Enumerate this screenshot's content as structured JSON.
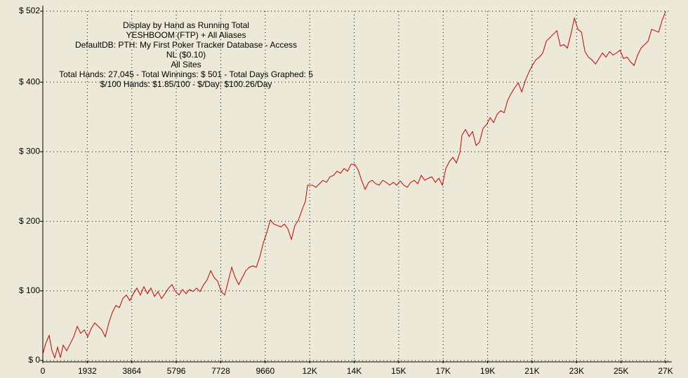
{
  "chart_data": {
    "type": "line",
    "annotations": [
      "Display by Hand as Running Total",
      "YESHBOOM (FTP) + All Aliases",
      "DefaultDB: PTH: My First Poker Tracker Database - Access",
      "NL ($0.10)",
      "All Sites",
      "Total Hands: 27,045 - Total Winnings: $ 501 - Total Days Graphed: 5",
      "$/100 Hands: $1.85/100 - $/Day: $100.26/Day"
    ],
    "x": [
      0,
      122,
      275,
      397,
      519,
      641,
      763,
      885,
      1037,
      1190,
      1342,
      1495,
      1647,
      1800,
      1952,
      2105,
      2257,
      2410,
      2562,
      2715,
      2867,
      3020,
      3172,
      3325,
      3477,
      3630,
      3782,
      3935,
      4087,
      4240,
      4392,
      4545,
      4697,
      4850,
      5002,
      5155,
      5307,
      5460,
      5612,
      5765,
      5917,
      6070,
      6222,
      6375,
      6527,
      6680,
      6832,
      6985,
      7137,
      7290,
      7442,
      7595,
      7747,
      7900,
      8052,
      8205,
      8357,
      8510,
      8662,
      8815,
      8967,
      9120,
      9272,
      9425,
      9577,
      9730,
      9882,
      10035,
      10187,
      10340,
      10492,
      10645,
      10797,
      10950,
      11102,
      11255,
      11407,
      11499,
      11712,
      11865,
      12017,
      12170,
      12322,
      12475,
      12627,
      12780,
      12932,
      13085,
      13237,
      13390,
      13542,
      13695,
      13847,
      14000,
      14152,
      14305,
      14457,
      14610,
      14762,
      14915,
      15067,
      15220,
      15372,
      15525,
      15677,
      15830,
      15982,
      16135,
      16287,
      16440,
      16592,
      16745,
      16897,
      17050,
      17202,
      17355,
      17507,
      17660,
      17812,
      17965,
      18117,
      18209,
      18361,
      18514,
      18666,
      18819,
      18971,
      19124,
      19276,
      19429,
      19581,
      19734,
      19886,
      20039,
      20191,
      20344,
      20496,
      20649,
      20801,
      20954,
      21106,
      21259,
      21411,
      21564,
      21716,
      21869,
      22021,
      22174,
      22326,
      22479,
      22631,
      22784,
      22936,
      23089,
      23241,
      23394,
      23546,
      23699,
      23851,
      24004,
      24156,
      24309,
      24461,
      24614,
      24766,
      24919,
      25071,
      25224,
      25376,
      25529,
      25681,
      25834,
      25986,
      26139,
      26291,
      26444,
      26596,
      26749,
      26901,
      27045
    ],
    "series": [
      {
        "color": "#cc0000",
        "values": [
          9,
          24,
          36,
          14,
          4,
          19,
          4,
          22,
          14,
          24,
          34,
          49,
          39,
          44,
          34,
          46,
          54,
          49,
          44,
          34,
          54,
          69,
          79,
          76,
          89,
          94,
          86,
          96,
          104,
          94,
          106,
          96,
          104,
          92,
          99,
          89,
          96,
          104,
          109,
          99,
          94,
          102,
          96,
          102,
          99,
          104,
          99,
          109,
          116,
          129,
          119,
          114,
          99,
          94,
          114,
          134,
          119,
          109,
          119,
          129,
          134,
          136,
          134,
          149,
          169,
          184,
          202,
          196,
          194,
          192,
          196,
          189,
          174,
          194,
          202,
          216,
          229,
          252,
          252,
          249,
          254,
          259,
          256,
          264,
          266,
          272,
          269,
          276,
          272,
          282,
          282,
          274,
          259,
          246,
          256,
          259,
          254,
          252,
          259,
          256,
          252,
          256,
          252,
          258,
          252,
          249,
          256,
          259,
          254,
          266,
          259,
          262,
          264,
          256,
          262,
          252,
          276,
          286,
          292,
          284,
          299,
          324,
          332,
          322,
          329,
          309,
          314,
          334,
          339,
          349,
          342,
          354,
          359,
          356,
          374,
          384,
          392,
          399,
          386,
          402,
          414,
          424,
          432,
          436,
          442,
          459,
          464,
          469,
          474,
          452,
          454,
          449,
          469,
          492,
          476,
          472,
          444,
          436,
          432,
          426,
          434,
          442,
          436,
          444,
          439,
          442,
          446,
          434,
          436,
          429,
          424,
          439,
          449,
          454,
          459,
          476,
          474,
          472,
          489,
          501
        ]
      }
    ],
    "xlim": [
      0,
      27200
    ],
    "xticks": [
      0,
      1932,
      3864,
      5796,
      7728,
      9660,
      {
        "value": 11592,
        "label": "12K"
      },
      {
        "value": 13524,
        "label": "14K"
      },
      {
        "value": 15456,
        "label": "15K"
      },
      {
        "value": 17388,
        "label": "17K"
      },
      {
        "value": 19320,
        "label": "19K"
      },
      {
        "value": 21252,
        "label": "21K"
      },
      {
        "value": 23184,
        "label": "23K"
      },
      {
        "value": 25116,
        "label": "25K"
      },
      {
        "value": 27048,
        "label": "27K"
      }
    ],
    "ylim": [
      0,
      502
    ],
    "yticks": [
      {
        "value": 0,
        "label": "$ 0"
      },
      {
        "value": 100,
        "label": "$ 100"
      },
      {
        "value": 200,
        "label": "$ 200"
      },
      {
        "value": 300,
        "label": "$ 300"
      },
      {
        "value": 400,
        "label": "$ 400"
      },
      {
        "value": 502,
        "label": "$ 502"
      }
    ],
    "grid": true
  }
}
